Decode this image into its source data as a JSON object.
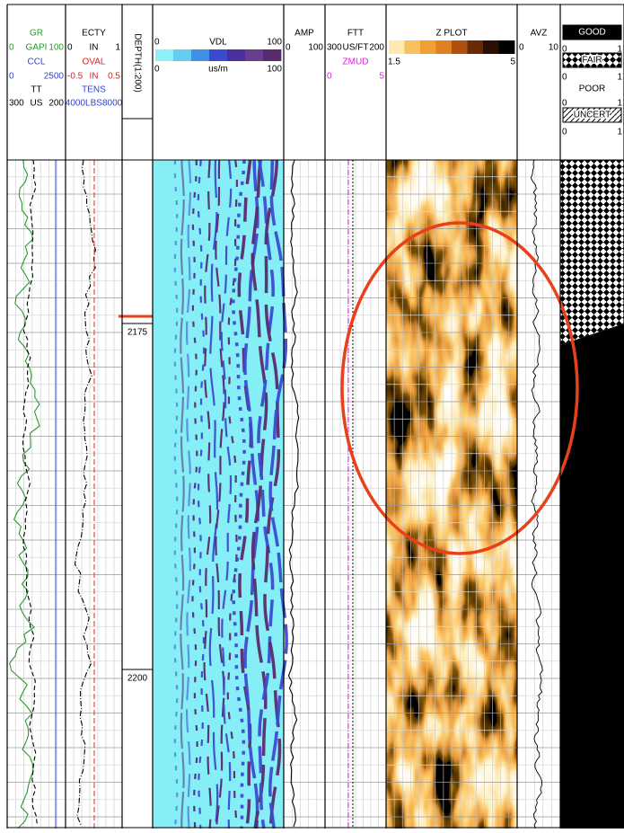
{
  "tracks": [
    {
      "lines": [
        {
          "texts": [
            "GR"
          ],
          "color": "#2a9a2a"
        },
        {
          "texts": [
            "0",
            "GAPI",
            "100"
          ],
          "color": "#2a9a2a"
        },
        {
          "texts": [
            "CCL"
          ],
          "color": "#3344cc"
        },
        {
          "texts": [
            "0",
            "2500"
          ],
          "color": "#3344cc"
        },
        {
          "texts": [
            "TT"
          ],
          "color": "#000000"
        },
        {
          "texts": [
            "300",
            "US",
            "200"
          ],
          "color": "#000000"
        }
      ]
    },
    {
      "lines": [
        {
          "texts": [
            "ECTY"
          ],
          "color": "#000000"
        },
        {
          "texts": [
            "0",
            "IN",
            "1"
          ],
          "color": "#000000"
        },
        {
          "texts": [
            "OVAL"
          ],
          "color": "#e02020"
        },
        {
          "texts": [
            "-0.5",
            "IN",
            "0.5"
          ],
          "color": "#e02020"
        },
        {
          "texts": [
            "TENS"
          ],
          "color": "#3344cc"
        },
        {
          "texts": [
            "4000LBS8000"
          ],
          "color": "#3344cc"
        }
      ]
    },
    {
      "lines": [
        {
          "texts": [
            "DEPTH(1:200)"
          ],
          "color": "#000000"
        }
      ]
    },
    {
      "lines": [
        {
          "texts": [
            "0",
            "VDL",
            "100"
          ],
          "color": "#000000"
        },
        {
          "texts": [
            "0",
            "us/m",
            "100"
          ],
          "color": "#000000"
        }
      ],
      "colorbar": [
        "#8ff0f8",
        "#66ccf0",
        "#3f8fe6",
        "#3a4bd0",
        "#4a2fa0",
        "#6a3d8f",
        "#5a2a6e"
      ]
    },
    {
      "lines": [
        {
          "texts": [
            "AMP"
          ],
          "color": "#000000"
        },
        {
          "texts": [
            "0",
            "100"
          ],
          "color": "#000000"
        }
      ]
    },
    {
      "lines": [
        {
          "texts": [
            "FTT"
          ],
          "color": "#000000"
        },
        {
          "texts": [
            "300",
            "US/FT",
            "200"
          ],
          "color": "#000000"
        },
        {
          "texts": [
            "ZMUD"
          ],
          "color": "#e020e0"
        },
        {
          "texts": [
            "0",
            "5"
          ],
          "color": "#e020e0"
        }
      ]
    },
    {
      "lines": [
        {
          "texts": [
            "Z PLOT"
          ],
          "color": "#000000"
        },
        {
          "texts": [
            "1.5",
            "5"
          ],
          "color": "#000000"
        }
      ],
      "colorbar": [
        "#ffe9b0",
        "#f9c060",
        "#f0a030",
        "#e08020",
        "#b05010",
        "#6a2a08",
        "#2a1004",
        "#000000"
      ]
    },
    {
      "lines": [
        {
          "texts": [
            "AVZ"
          ],
          "color": "#000000"
        },
        {
          "texts": [
            "0",
            "10"
          ],
          "color": "#000000"
        }
      ]
    },
    {
      "lines": [
        {
          "texts": [
            "GOOD"
          ],
          "color": "#ffffff",
          "box": "black"
        },
        {
          "texts": [
            "0",
            "1"
          ],
          "color": "#000000"
        },
        {
          "texts": [
            "FAIR"
          ],
          "color": "#000000",
          "box": "hatch"
        },
        {
          "texts": [
            "0",
            "1"
          ],
          "color": "#000000"
        },
        {
          "texts": [
            "POOR"
          ],
          "color": "#000000"
        },
        {
          "texts": [
            "0",
            "1"
          ],
          "color": "#000000"
        },
        {
          "texts": [
            "UNCERT"
          ],
          "color": "#000000",
          "box": "dots"
        },
        {
          "texts": [
            "0",
            "1"
          ],
          "color": "#000000"
        }
      ]
    }
  ],
  "depth_labels": [
    "2175",
    "2200"
  ]
}
